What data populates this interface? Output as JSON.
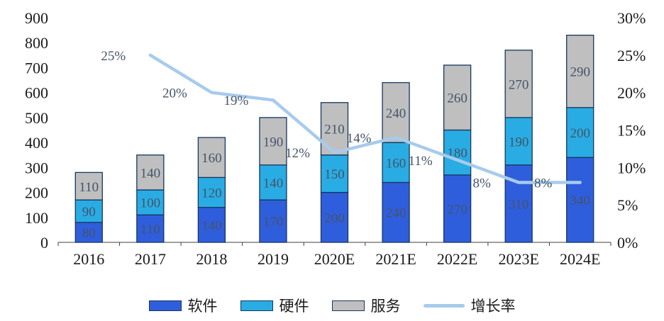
{
  "chart_data": {
    "type": "bar",
    "stacked": true,
    "title": "",
    "categories": [
      "2016",
      "2017",
      "2018",
      "2019",
      "2020E",
      "2021E",
      "2022E",
      "2023E",
      "2024E"
    ],
    "series": [
      {
        "name": "软件",
        "color": "#2F5EDD",
        "values": [
          80,
          110,
          140,
          170,
          200,
          240,
          270,
          310,
          340
        ]
      },
      {
        "name": "硬件",
        "color": "#29ACE3",
        "values": [
          90,
          100,
          120,
          140,
          150,
          160,
          180,
          190,
          200
        ]
      },
      {
        "name": "服务",
        "color": "#BFBFBF",
        "values": [
          110,
          140,
          160,
          190,
          210,
          240,
          260,
          270,
          290
        ]
      }
    ],
    "line": {
      "name": "增长率",
      "color": "#A8CBEC",
      "unit": "%",
      "values": [
        null,
        25,
        20,
        19,
        12,
        14,
        11,
        8,
        8
      ]
    },
    "bar_border": "#17375E",
    "label_color": "#445469",
    "left_axis": {
      "min": 0,
      "max": 900,
      "step": 100
    },
    "right_axis": {
      "min": 0,
      "max": 30,
      "step": 5,
      "unit": "%"
    },
    "grid": false,
    "legend_position": "bottom"
  }
}
